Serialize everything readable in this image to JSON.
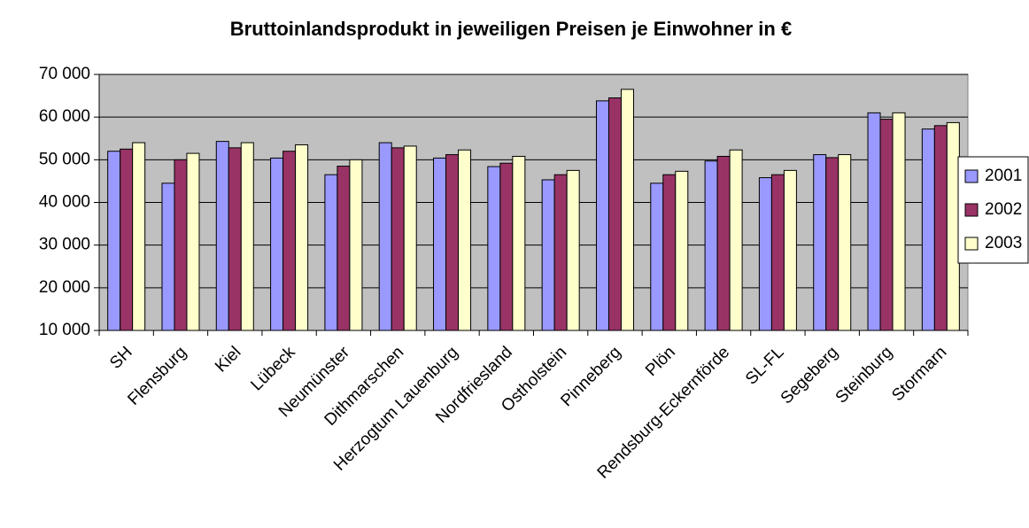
{
  "chart_data": {
    "type": "bar",
    "title": "Bruttoinlandsprodukt in jeweiligen Preisen je Einwohner in €",
    "categories": [
      "SH",
      "Flensburg",
      "Kiel",
      "Lübeck",
      "Neumünster",
      "Dithmarschen",
      "Herzogtum Lauenburg",
      "Nordfriesland",
      "Ostholstein",
      "Pinneberg",
      "Plön",
      "Rendsburg-Eckernförde",
      "SL-FL",
      "Segeberg",
      "Steinburg",
      "Stormarn"
    ],
    "series": [
      {
        "name": "2001",
        "color": "#9999ff",
        "values": [
          52000,
          44500,
          54300,
          50400,
          46500,
          54000,
          50400,
          48400,
          45300,
          63800,
          44500,
          49700,
          45800,
          51200,
          61000,
          57200
        ]
      },
      {
        "name": "2002",
        "color": "#993366",
        "values": [
          52500,
          50000,
          52800,
          52000,
          48500,
          52800,
          51200,
          49200,
          46500,
          64500,
          46500,
          50800,
          46500,
          50500,
          59500,
          58000
        ]
      },
      {
        "name": "2003",
        "color": "#ffffcc",
        "values": [
          54000,
          51500,
          54000,
          53500,
          50000,
          53200,
          52300,
          50800,
          47500,
          66500,
          47300,
          52300,
          47500,
          51200,
          61000,
          58700
        ]
      }
    ],
    "ylim": [
      10000,
      70000
    ],
    "yticks": [
      {
        "value": 10000,
        "label": "10 000"
      },
      {
        "value": 20000,
        "label": "20 000"
      },
      {
        "value": 30000,
        "label": "30 000"
      },
      {
        "value": 40000,
        "label": "40 000"
      },
      {
        "value": 50000,
        "label": "50 000"
      },
      {
        "value": 60000,
        "label": "60 000"
      },
      {
        "value": 70000,
        "label": "70 000"
      }
    ],
    "grid": true,
    "legend": "right"
  }
}
